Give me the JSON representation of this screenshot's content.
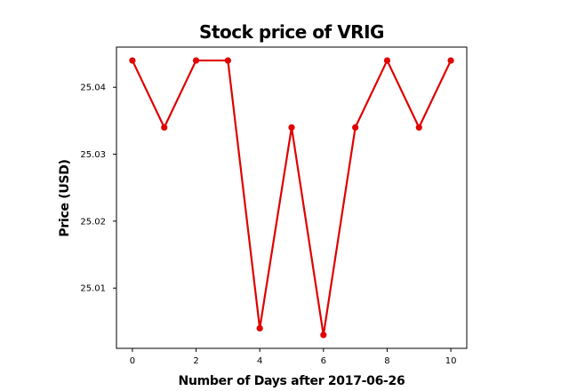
{
  "chart_data": {
    "type": "line",
    "title": "Stock price of VRIG",
    "xlabel": "Number of Days after 2017-06-26",
    "ylabel": "Price (USD)",
    "x": [
      0,
      1,
      2,
      3,
      4,
      5,
      6,
      7,
      8,
      9,
      10
    ],
    "series": [
      {
        "values": [
          25.044,
          25.034,
          25.044,
          25.044,
          25.004,
          25.034,
          25.003,
          25.034,
          25.044,
          25.034,
          25.044
        ]
      }
    ],
    "xlim": [
      -0.5,
      10.5
    ],
    "ylim": [
      25.001,
      25.046
    ],
    "xticks": [
      0,
      2,
      4,
      6,
      8,
      10
    ],
    "yticks": [
      25.01,
      25.02,
      25.03,
      25.04
    ],
    "ytick_labels": [
      "25.01",
      "25.02",
      "25.03",
      "25.04"
    ],
    "grid": false,
    "line_color": "#e00000",
    "marker": "circle"
  }
}
